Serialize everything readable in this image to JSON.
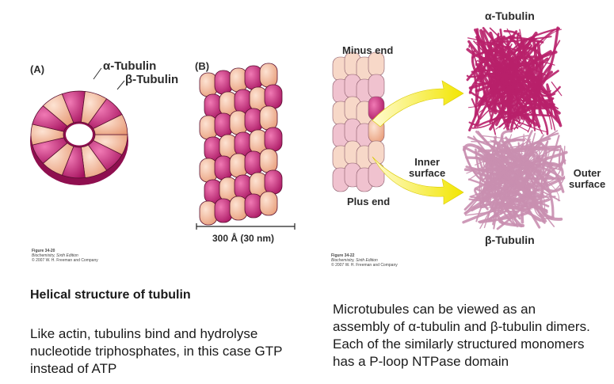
{
  "figure_left": {
    "panel_a_label": "(A)",
    "panel_b_label": "(B)",
    "alpha_label": "α-Tubulin",
    "beta_label": "β-Tubulin",
    "scale_label": "300 Å (30 nm)",
    "caption_line1": "Figure 34-20",
    "caption_line2": "Biochemistry, Sixth Edition",
    "caption_line3": "© 2007 W. H. Freeman and Company"
  },
  "figure_right": {
    "minus_end": "Minus end",
    "plus_end": "Plus end",
    "inner_surface_1": "Inner",
    "inner_surface_2": "surface",
    "outer_surface_1": "Outer",
    "outer_surface_2": "surface",
    "alpha_label": "α-Tubulin",
    "beta_label": "β-Tubulin",
    "caption_line1": "Figure 34-22",
    "caption_line2": "Biochemistry, Sixth Edition",
    "caption_line3": "© 2007 W. H. Freeman and Company"
  },
  "text": {
    "heading": "Helical structure of tubulin",
    "left_paragraph": "Like actin, tubulins bind and hydrolyse nucleotide triphosphates, in this case GTP instead of ATP",
    "right_paragraph": "Microtubules can be viewed as an assembly of α-tubulin and β-tubulin dimers. Each of the similarly structured monomers has a P-loop NTPase domain"
  },
  "colors": {
    "alpha": "#f4b08e",
    "beta": "#c2287a",
    "ribbon_alpha": "#b8206a",
    "ribbon_beta": "#c98fb0",
    "arrow": "#f2e600"
  }
}
